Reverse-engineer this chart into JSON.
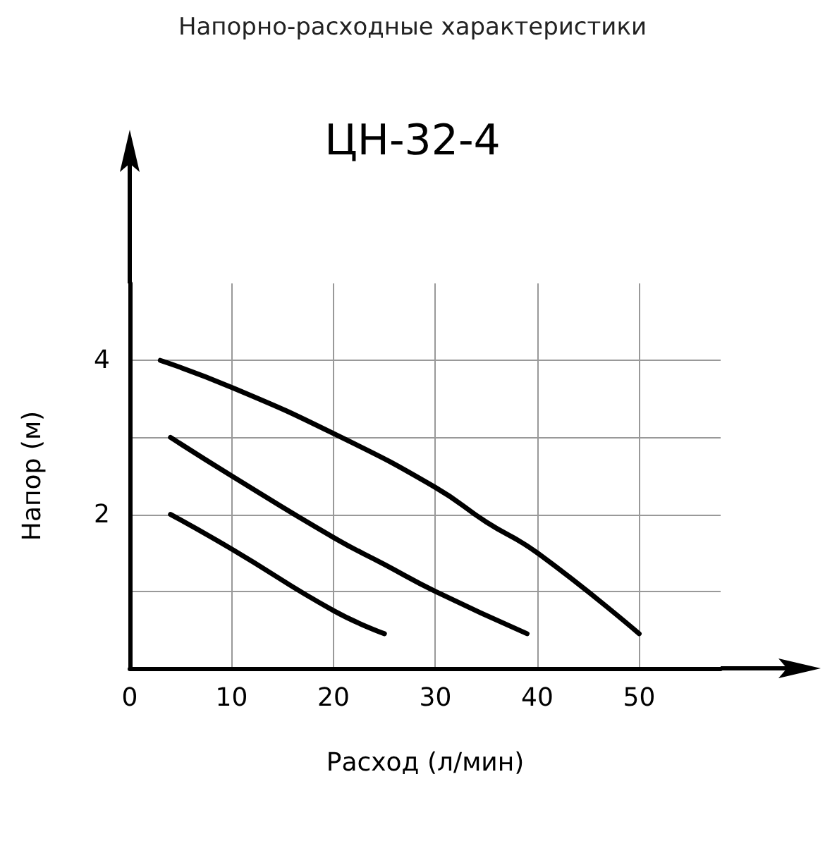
{
  "chart_data": {
    "type": "line",
    "title": "Напорно-расходные характеристики",
    "subtitle": "ЦН-32-4",
    "xlabel": "Расход (л/мин)",
    "ylabel": "Напор (м)",
    "xlim": [
      0,
      58
    ],
    "xticks": [
      0,
      10,
      20,
      30,
      40,
      50
    ],
    "ylim": [
      0,
      5
    ],
    "yticks": [
      {
        "value": 1,
        "label": null
      },
      2,
      {
        "value": 3,
        "label": null
      },
      4
    ],
    "grid": true,
    "marker": "none",
    "line_style": "solid",
    "series": [
      {
        "color": "#000000",
        "x": [
          3,
          10,
          20,
          30,
          35,
          40,
          50
        ],
        "values": [
          4.0,
          3.65,
          3.05,
          2.35,
          1.9,
          1.5,
          0.45
        ]
      },
      {
        "color": "#000000",
        "x": [
          4,
          10,
          20,
          25,
          30,
          39
        ],
        "values": [
          3.0,
          2.5,
          1.7,
          1.35,
          1.0,
          0.45
        ]
      },
      {
        "color": "#000000",
        "x": [
          4,
          10,
          20,
          25
        ],
        "values": [
          2.0,
          1.55,
          0.75,
          0.45
        ]
      }
    ]
  }
}
